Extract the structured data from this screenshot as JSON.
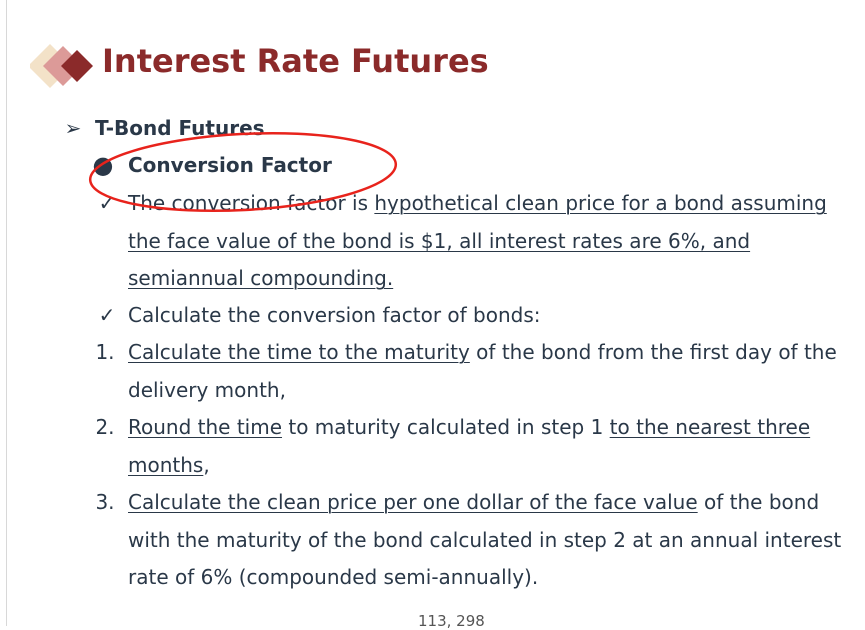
{
  "title": "Interest Rate Futures",
  "accent_color": "#8b2a2a",
  "annotation_color": "#e8231c",
  "bullets": {
    "level1": {
      "icon": "arrowhead-bullet-icon",
      "text": "T-Bond Futures"
    },
    "level2": {
      "icon": "filled-circle-bullet-icon",
      "text": "Conversion Factor"
    },
    "check1": {
      "icon": "checkmark-icon",
      "segments": [
        {
          "text": "The conversion factor is ",
          "underline": false
        },
        {
          "text": "hypothetical clean price for a bond assuming the face value of the bond is $1, all interest rates are 6%, and semiannual compounding.",
          "underline": true
        }
      ]
    },
    "check2": {
      "icon": "checkmark-icon",
      "segments": [
        {
          "text": "Calculate the conversion factor of bonds:",
          "underline": false
        }
      ]
    }
  },
  "steps": [
    {
      "number": "1.",
      "segments": [
        {
          "text": "Calculate the time to the maturity",
          "underline": true
        },
        {
          "text": " of the bond from the first day of the delivery month,",
          "underline": false
        }
      ]
    },
    {
      "number": "2.",
      "segments": [
        {
          "text": "Round the time",
          "underline": true
        },
        {
          "text": " to maturity calculated in step 1 ",
          "underline": false
        },
        {
          "text": "to the nearest three months",
          "underline": true
        },
        {
          "text": ",",
          "underline": false
        }
      ]
    },
    {
      "number": "3.",
      "segments": [
        {
          "text": "Calculate the clean price per one dollar of the face value",
          "underline": true
        },
        {
          "text": " of the bond with the maturity of the bond calculated in step 2 at an annual interest rate of 6% (compounded semi-annually).",
          "underline": false
        }
      ]
    }
  ],
  "page_number": "113, 298"
}
